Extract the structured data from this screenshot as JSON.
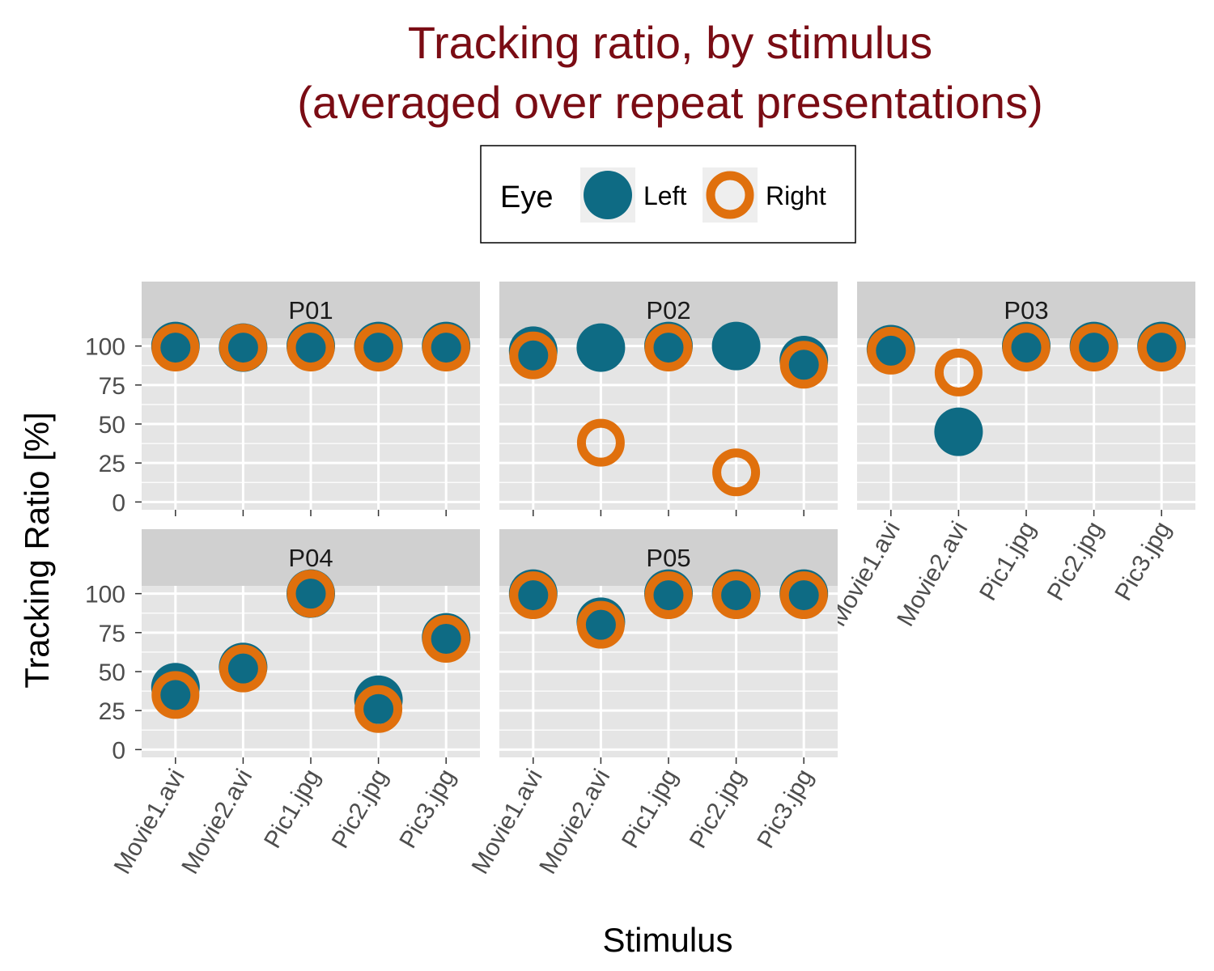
{
  "chart_data": {
    "type": "scatter",
    "title": [
      "Tracking ratio, by stimulus",
      "(averaged over repeat presentations)"
    ],
    "xlabel": "Stimulus",
    "ylabel": "Tracking Ratio [%]",
    "ylim": [
      -5,
      105
    ],
    "yticks": [
      0,
      25,
      50,
      75,
      100
    ],
    "categories": [
      "Movie1.avi",
      "Movie2.avi",
      "Pic1.jpg",
      "Pic2.jpg",
      "Pic3.jpg"
    ],
    "legend": {
      "title": "Eye",
      "position": "top",
      "entries": [
        {
          "label": "Left",
          "style": "filled",
          "color": "#0e6b84"
        },
        {
          "label": "Right",
          "style": "ring",
          "color": "#e0700d"
        }
      ]
    },
    "colors": {
      "left": "#0e6b84",
      "right": "#e0700d",
      "title": "#7a0c14",
      "panel": "#e5e5e5",
      "strip": "#d0d0d0"
    },
    "panels": [
      {
        "label": "P01",
        "series": [
          {
            "name": "Left",
            "values": [
              100,
              99,
              100,
              100,
              100
            ]
          },
          {
            "name": "Right",
            "values": [
              99,
              99,
              99,
              99,
              99
            ]
          }
        ]
      },
      {
        "label": "P02",
        "series": [
          {
            "name": "Left",
            "values": [
              97,
              99,
              100,
              100,
              91
            ]
          },
          {
            "name": "Right",
            "values": [
              94,
              38,
              99,
              19,
              88
            ]
          }
        ]
      },
      {
        "label": "P03",
        "series": [
          {
            "name": "Left",
            "values": [
              98,
              45,
              100,
              100,
              100
            ]
          },
          {
            "name": "Right",
            "values": [
              97,
              83,
              99,
              99,
              99
            ]
          }
        ]
      },
      {
        "label": "P04",
        "series": [
          {
            "name": "Left",
            "values": [
              40,
              53,
              100,
              32,
              72
            ]
          },
          {
            "name": "Right",
            "values": [
              35,
              52,
              100,
              26,
              71
            ]
          }
        ]
      },
      {
        "label": "P05",
        "series": [
          {
            "name": "Left",
            "values": [
              100,
              82,
              100,
              100,
              100
            ]
          },
          {
            "name": "Right",
            "values": [
              99,
              80,
              99,
              99,
              99
            ]
          }
        ]
      }
    ]
  }
}
